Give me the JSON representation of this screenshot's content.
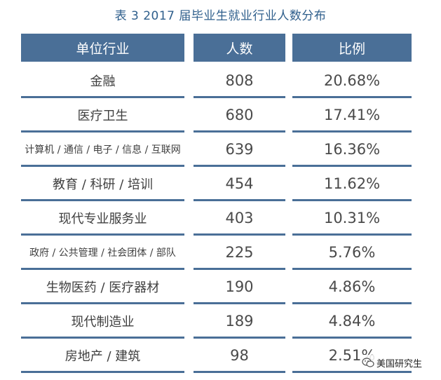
{
  "table": {
    "title": "表 3 2017 届毕业生就业行业人数分布",
    "headers": [
      "单位行业",
      "人数",
      "比例"
    ],
    "rows": [
      {
        "industry": "金融",
        "count": "808",
        "ratio": "20.68%"
      },
      {
        "industry": "医疗卫生",
        "count": "680",
        "ratio": "17.41%"
      },
      {
        "industry": "计算机 / 通信 / 电子 / 信息 / 互联网",
        "count": "639",
        "ratio": "16.36%"
      },
      {
        "industry": "教育 / 科研 / 培训",
        "count": "454",
        "ratio": "11.62%"
      },
      {
        "industry": "现代专业服务业",
        "count": "403",
        "ratio": "10.31%"
      },
      {
        "industry": "政府 / 公共管理 / 社会团体 / 部队",
        "count": "225",
        "ratio": "5.76%"
      },
      {
        "industry": "生物医药 / 医疗器材",
        "count": "190",
        "ratio": "4.86%"
      },
      {
        "industry": "现代制造业",
        "count": "189",
        "ratio": "4.84%"
      },
      {
        "industry": "房地产 / 建筑",
        "count": "98",
        "ratio": "2.51%"
      }
    ]
  },
  "watermark": {
    "text": "美国研究生",
    "icon": "wechat-icon"
  },
  "colors": {
    "header_bg": "#4a6f97",
    "title": "#2f5f8c",
    "text": "#3f3f3f"
  }
}
